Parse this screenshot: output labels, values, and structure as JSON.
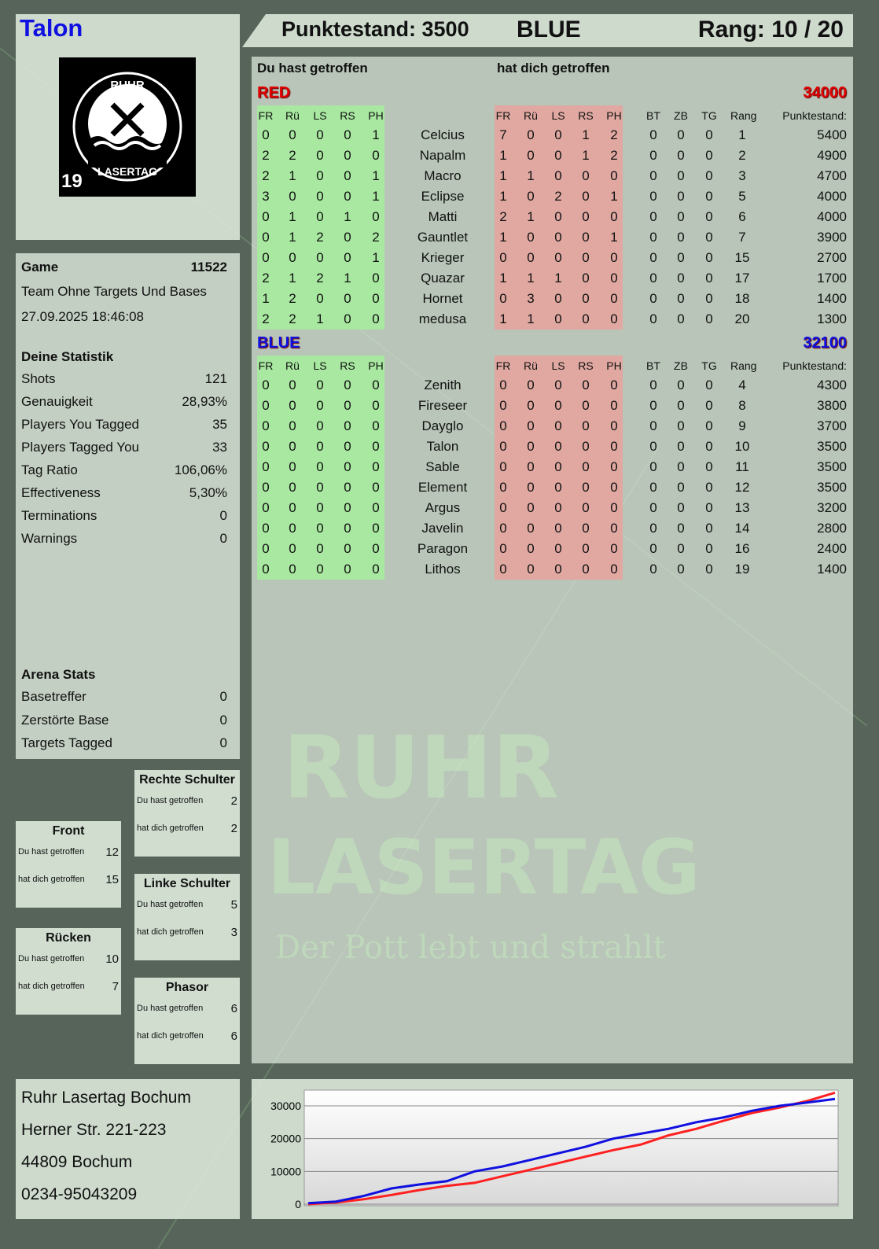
{
  "header": {
    "player": "Talon",
    "score_label": "Punktestand: 3500",
    "team": "BLUE",
    "rank_label": "Rang: 10 / 20"
  },
  "logo": {
    "text": "RUHR LASERTAG",
    "number": "19"
  },
  "watermark": {
    "line1": "RUHR",
    "line2": "LASERTAG",
    "slogan": "Der Pott lebt und strahlt"
  },
  "game": {
    "label": "Game",
    "id": "11522",
    "mode": "Team Ohne Targets Und Bases",
    "datetime": "27.09.2025 18:46:08"
  },
  "stats": {
    "title": "Deine Statistik",
    "rows": [
      [
        "Shots",
        "121"
      ],
      [
        "Genauigkeit",
        "28,93%"
      ],
      [
        "Players You Tagged",
        "35"
      ],
      [
        "Players Tagged You",
        "33"
      ],
      [
        "Tag Ratio",
        "106,06%"
      ],
      [
        "Effectiveness",
        "5,30%"
      ],
      [
        "Terminations",
        "0"
      ],
      [
        "Warnings",
        "0"
      ]
    ]
  },
  "arena": {
    "title": "Arena Stats",
    "rows": [
      [
        "Basetreffer",
        "0"
      ],
      [
        "Zerstörte Base",
        "0"
      ],
      [
        "Targets Tagged",
        "0"
      ]
    ]
  },
  "zones": [
    {
      "title": "Rechte Schulter",
      "you_hit_label": "Du hast getroffen",
      "you_hit": "2",
      "hit_you_label": "hat dich getroffen",
      "hit_you": "2"
    },
    {
      "title": "Front",
      "you_hit_label": "Du hast getroffen",
      "you_hit": "12",
      "hit_you_label": "hat dich getroffen",
      "hit_you": "15"
    },
    {
      "title": "Linke Schulter",
      "you_hit_label": "Du hast getroffen",
      "you_hit": "5",
      "hit_you_label": "hat dich getroffen",
      "hit_you": "3"
    },
    {
      "title": "Rücken",
      "you_hit_label": "Du hast getroffen",
      "you_hit": "10",
      "hit_you_label": "hat dich getroffen",
      "hit_you": "7"
    },
    {
      "title": "Phasor",
      "you_hit_label": "Du hast getroffen",
      "you_hit": "6",
      "hit_you_label": "hat dich getroffen",
      "hit_you": "6"
    }
  ],
  "main": {
    "you_hit": "Du hast getroffen",
    "hit_you": "hat dich getroffen",
    "columns": [
      "FR",
      "Rü",
      "LS",
      "RS",
      "PH",
      "FR",
      "Rü",
      "LS",
      "RS",
      "PH",
      "BT",
      "ZB",
      "TG",
      "Rang",
      "Punktestand:"
    ],
    "teams": [
      {
        "name": "RED",
        "total": "34000",
        "color": "#e00000",
        "players": [
          [
            "0",
            "0",
            "0",
            "0",
            "1",
            "Celcius",
            "7",
            "0",
            "0",
            "1",
            "2",
            "0",
            "0",
            "0",
            "1",
            "5400"
          ],
          [
            "2",
            "2",
            "0",
            "0",
            "0",
            "Napalm",
            "1",
            "0",
            "0",
            "1",
            "2",
            "0",
            "0",
            "0",
            "2",
            "4900"
          ],
          [
            "2",
            "1",
            "0",
            "0",
            "1",
            "Macro",
            "1",
            "1",
            "0",
            "0",
            "0",
            "0",
            "0",
            "0",
            "3",
            "4700"
          ],
          [
            "3",
            "0",
            "0",
            "0",
            "1",
            "Eclipse",
            "1",
            "0",
            "2",
            "0",
            "1",
            "0",
            "0",
            "0",
            "5",
            "4000"
          ],
          [
            "0",
            "1",
            "0",
            "1",
            "0",
            "Matti",
            "2",
            "1",
            "0",
            "0",
            "0",
            "0",
            "0",
            "0",
            "6",
            "4000"
          ],
          [
            "0",
            "1",
            "2",
            "0",
            "2",
            "Gauntlet",
            "1",
            "0",
            "0",
            "0",
            "1",
            "0",
            "0",
            "0",
            "7",
            "3900"
          ],
          [
            "0",
            "0",
            "0",
            "0",
            "1",
            "Krieger",
            "0",
            "0",
            "0",
            "0",
            "0",
            "0",
            "0",
            "0",
            "15",
            "2700"
          ],
          [
            "2",
            "1",
            "2",
            "1",
            "0",
            "Quazar",
            "1",
            "1",
            "1",
            "0",
            "0",
            "0",
            "0",
            "0",
            "17",
            "1700"
          ],
          [
            "1",
            "2",
            "0",
            "0",
            "0",
            "Hornet",
            "0",
            "3",
            "0",
            "0",
            "0",
            "0",
            "0",
            "0",
            "18",
            "1400"
          ],
          [
            "2",
            "2",
            "1",
            "0",
            "0",
            "medusa",
            "1",
            "1",
            "0",
            "0",
            "0",
            "0",
            "0",
            "0",
            "20",
            "1300"
          ]
        ]
      },
      {
        "name": "BLUE",
        "total": "32100",
        "color": "#1010e0",
        "players": [
          [
            "0",
            "0",
            "0",
            "0",
            "0",
            "Zenith",
            "0",
            "0",
            "0",
            "0",
            "0",
            "0",
            "0",
            "0",
            "4",
            "4300"
          ],
          [
            "0",
            "0",
            "0",
            "0",
            "0",
            "Fireseer",
            "0",
            "0",
            "0",
            "0",
            "0",
            "0",
            "0",
            "0",
            "8",
            "3800"
          ],
          [
            "0",
            "0",
            "0",
            "0",
            "0",
            "Dayglo",
            "0",
            "0",
            "0",
            "0",
            "0",
            "0",
            "0",
            "0",
            "9",
            "3700"
          ],
          [
            "0",
            "0",
            "0",
            "0",
            "0",
            "Talon",
            "0",
            "0",
            "0",
            "0",
            "0",
            "0",
            "0",
            "0",
            "10",
            "3500"
          ],
          [
            "0",
            "0",
            "0",
            "0",
            "0",
            "Sable",
            "0",
            "0",
            "0",
            "0",
            "0",
            "0",
            "0",
            "0",
            "11",
            "3500"
          ],
          [
            "0",
            "0",
            "0",
            "0",
            "0",
            "Element",
            "0",
            "0",
            "0",
            "0",
            "0",
            "0",
            "0",
            "0",
            "12",
            "3500"
          ],
          [
            "0",
            "0",
            "0",
            "0",
            "0",
            "Argus",
            "0",
            "0",
            "0",
            "0",
            "0",
            "0",
            "0",
            "0",
            "13",
            "3200"
          ],
          [
            "0",
            "0",
            "0",
            "0",
            "0",
            "Javelin",
            "0",
            "0",
            "0",
            "0",
            "0",
            "0",
            "0",
            "0",
            "14",
            "2800"
          ],
          [
            "0",
            "0",
            "0",
            "0",
            "0",
            "Paragon",
            "0",
            "0",
            "0",
            "0",
            "0",
            "0",
            "0",
            "0",
            "16",
            "2400"
          ],
          [
            "0",
            "0",
            "0",
            "0",
            "0",
            "Lithos",
            "0",
            "0",
            "0",
            "0",
            "0",
            "0",
            "0",
            "0",
            "19",
            "1400"
          ]
        ]
      }
    ]
  },
  "address": {
    "lines": [
      "Ruhr Lasertag Bochum",
      "Herner Str. 221-223",
      "44809 Bochum",
      "0234-95043209"
    ]
  },
  "chart_data": {
    "type": "line",
    "ylim": [
      0,
      35000
    ],
    "yticks": [
      "0",
      "10000",
      "20000",
      "30000"
    ],
    "grid": true,
    "series": [
      {
        "color": "#ff2020",
        "values": [
          0,
          500,
          1500,
          2800,
          4300,
          5600,
          6500,
          8500,
          10500,
          12500,
          14500,
          16500,
          18200,
          21000,
          23000,
          25500,
          27800,
          29500,
          31500,
          34000
        ]
      },
      {
        "color": "#1010e0",
        "values": [
          300,
          800,
          2500,
          4800,
          6000,
          7000,
          10000,
          11500,
          13500,
          15500,
          17500,
          20000,
          21500,
          23000,
          25000,
          26500,
          28500,
          30000,
          31000,
          32100
        ]
      }
    ]
  },
  "colors": {
    "player": "#1010e0",
    "you_hit_bg": "#a8e8a0",
    "hit_you_bg": "#e0a8a0"
  }
}
